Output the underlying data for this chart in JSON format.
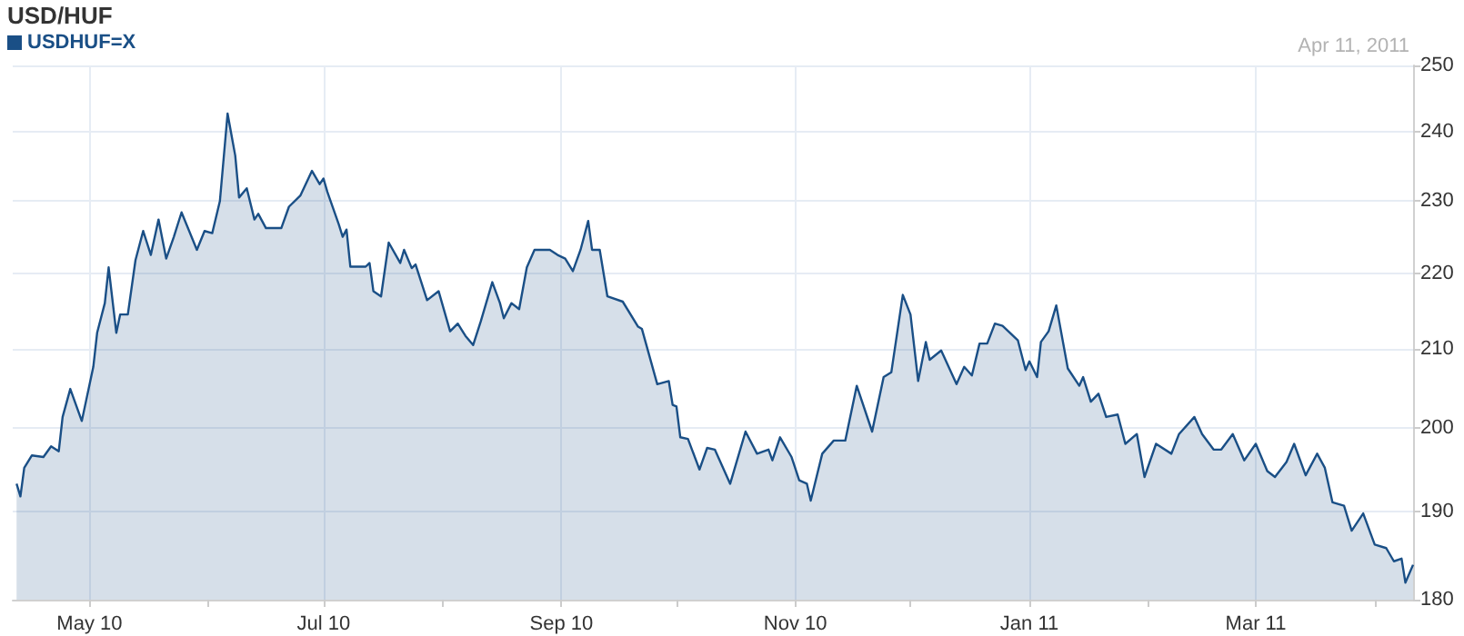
{
  "chart_data": {
    "type": "area",
    "title": "USD/HUF",
    "annotations": [
      "Apr 11, 2011"
    ],
    "legend": "top left",
    "grid": true,
    "log": "y",
    "marker": "none",
    "line_style": "solid",
    "xlim": [
      "2010-04-11",
      "2011-04-11"
    ],
    "xticks": [
      {
        "value": "2010-05-01",
        "label": "May 10"
      },
      {
        "value": "2010-06-01",
        "label": null
      },
      {
        "value": "2010-07-01",
        "label": "Jul 10"
      },
      {
        "value": "2010-08-01",
        "label": null
      },
      {
        "value": "2010-09-01",
        "label": "Sep 10"
      },
      {
        "value": "2010-10-01",
        "label": null
      },
      {
        "value": "2010-11-01",
        "label": "Nov 10"
      },
      {
        "value": "2010-12-01",
        "label": null
      },
      {
        "value": "2011-01-01",
        "label": "Jan 11"
      },
      {
        "value": "2011-02-01",
        "label": null
      },
      {
        "value": "2011-03-01",
        "label": "Mar 11"
      },
      {
        "value": "2011-04-01",
        "label": null
      }
    ],
    "ylim": [
      180,
      250
    ],
    "yticks": [
      180,
      190,
      200,
      210,
      220,
      230,
      240,
      250
    ],
    "x": [
      "2010-04-12",
      "2010-04-13",
      "2010-04-14",
      "2010-04-16",
      "2010-04-19",
      "2010-04-21",
      "2010-04-23",
      "2010-04-24",
      "2010-04-26",
      "2010-04-29",
      "2010-05-02",
      "2010-05-03",
      "2010-05-05",
      "2010-05-06",
      "2010-05-08",
      "2010-05-09",
      "2010-05-11",
      "2010-05-13",
      "2010-05-15",
      "2010-05-17",
      "2010-05-19",
      "2010-05-21",
      "2010-05-23",
      "2010-05-25",
      "2010-05-29",
      "2010-05-31",
      "2010-06-02",
      "2010-06-04",
      "2010-06-06",
      "2010-06-08",
      "2010-06-09",
      "2010-06-11",
      "2010-06-13",
      "2010-06-14",
      "2010-06-16",
      "2010-06-20",
      "2010-06-22",
      "2010-06-25",
      "2010-06-28",
      "2010-06-30",
      "2010-07-01",
      "2010-07-02",
      "2010-07-05",
      "2010-07-06",
      "2010-07-07",
      "2010-07-08",
      "2010-07-12",
      "2010-07-13",
      "2010-07-14",
      "2010-07-16",
      "2010-07-18",
      "2010-07-21",
      "2010-07-22",
      "2010-07-24",
      "2010-07-25",
      "2010-07-28",
      "2010-07-31",
      "2010-08-03",
      "2010-08-05",
      "2010-08-07",
      "2010-08-09",
      "2010-08-11",
      "2010-08-14",
      "2010-08-16",
      "2010-08-17",
      "2010-08-19",
      "2010-08-21",
      "2010-08-23",
      "2010-08-25",
      "2010-08-29",
      "2010-08-31",
      "2010-09-02",
      "2010-09-04",
      "2010-09-06",
      "2010-09-08",
      "2010-09-09",
      "2010-09-11",
      "2010-09-13",
      "2010-09-17",
      "2010-09-21",
      "2010-09-22",
      "2010-09-26",
      "2010-09-29",
      "2010-09-30",
      "2010-10-01",
      "2010-10-02",
      "2010-10-04",
      "2010-10-07",
      "2010-10-09",
      "2010-10-11",
      "2010-10-15",
      "2010-10-19",
      "2010-10-22",
      "2010-10-25",
      "2010-10-26",
      "2010-10-28",
      "2010-10-31",
      "2010-11-02",
      "2010-11-04",
      "2010-11-05",
      "2010-11-08",
      "2010-11-11",
      "2010-11-14",
      "2010-11-17",
      "2010-11-21",
      "2010-11-24",
      "2010-11-26",
      "2010-11-29",
      "2010-12-01",
      "2010-12-03",
      "2010-12-05",
      "2010-12-06",
      "2010-12-09",
      "2010-12-13",
      "2010-12-15",
      "2010-12-17",
      "2010-12-19",
      "2010-12-21",
      "2010-12-23",
      "2010-12-25",
      "2010-12-29",
      "2010-12-31",
      "2011-01-01",
      "2011-01-03",
      "2011-01-04",
      "2011-01-06",
      "2011-01-08",
      "2011-01-11",
      "2011-01-14",
      "2011-01-15",
      "2011-01-17",
      "2011-01-19",
      "2011-01-21",
      "2011-01-24",
      "2011-01-26",
      "2011-01-29",
      "2011-01-31",
      "2011-02-03",
      "2011-02-07",
      "2011-02-09",
      "2011-02-13",
      "2011-02-15",
      "2011-02-18",
      "2011-02-20",
      "2011-02-23",
      "2011-02-26",
      "2011-03-01",
      "2011-03-04",
      "2011-03-06",
      "2011-03-09",
      "2011-03-11",
      "2011-03-14",
      "2011-03-17",
      "2011-03-19",
      "2011-03-21",
      "2011-03-24",
      "2011-03-26",
      "2011-03-29",
      "2011-04-01",
      "2011-04-04",
      "2011-04-06",
      "2011-04-08",
      "2011-04-09",
      "2011-04-11"
    ],
    "series": [
      {
        "name": "USDHUF=X",
        "color": "#1a4f86",
        "values": [
          193.3,
          191.8,
          195.2,
          196.7,
          196.5,
          197.8,
          197.2,
          201.4,
          204.9,
          200.9,
          207.7,
          212.1,
          216.0,
          220.8,
          212.1,
          214.5,
          214.5,
          221.8,
          225.8,
          222.5,
          227.4,
          222.0,
          225.0,
          228.4,
          223.2,
          225.8,
          225.5,
          230.0,
          242.7,
          236.5,
          230.5,
          231.8,
          227.4,
          228.2,
          226.2,
          226.2,
          229.2,
          230.8,
          234.3,
          232.4,
          233.2,
          231.3,
          226.7,
          225.0,
          226.0,
          220.9,
          220.9,
          221.4,
          217.6,
          216.9,
          224.2,
          221.4,
          223.2,
          220.7,
          221.2,
          216.4,
          217.6,
          212.3,
          213.3,
          211.7,
          210.5,
          213.6,
          218.8,
          216.0,
          214.0,
          216.0,
          215.2,
          220.8,
          223.2,
          223.2,
          222.5,
          222.0,
          220.3,
          223.2,
          227.2,
          223.2,
          223.2,
          216.9,
          216.2,
          212.9,
          212.6,
          205.5,
          205.9,
          202.9,
          202.7,
          198.9,
          198.7,
          195.0,
          197.6,
          197.4,
          193.3,
          199.6,
          196.9,
          197.4,
          196.1,
          198.9,
          196.5,
          193.7,
          193.3,
          191.3,
          196.9,
          198.5,
          198.5,
          205.3,
          199.6,
          206.4,
          207.0,
          217.1,
          214.5,
          205.9,
          210.9,
          208.6,
          209.8,
          205.5,
          207.7,
          206.6,
          210.7,
          210.7,
          213.3,
          213.0,
          211.1,
          207.3,
          208.4,
          206.4,
          210.9,
          212.3,
          215.7,
          207.5,
          205.3,
          206.4,
          203.3,
          204.3,
          201.4,
          201.7,
          198.1,
          199.3,
          194.1,
          198.1,
          196.9,
          199.3,
          201.4,
          199.3,
          197.4,
          197.4,
          199.3,
          196.1,
          198.1,
          194.8,
          194.1,
          195.9,
          198.1,
          194.3,
          196.9,
          195.2,
          191.1,
          190.7,
          187.8,
          189.8,
          186.2,
          185.8,
          184.3,
          184.6,
          181.9,
          183.9
        ]
      }
    ]
  }
}
